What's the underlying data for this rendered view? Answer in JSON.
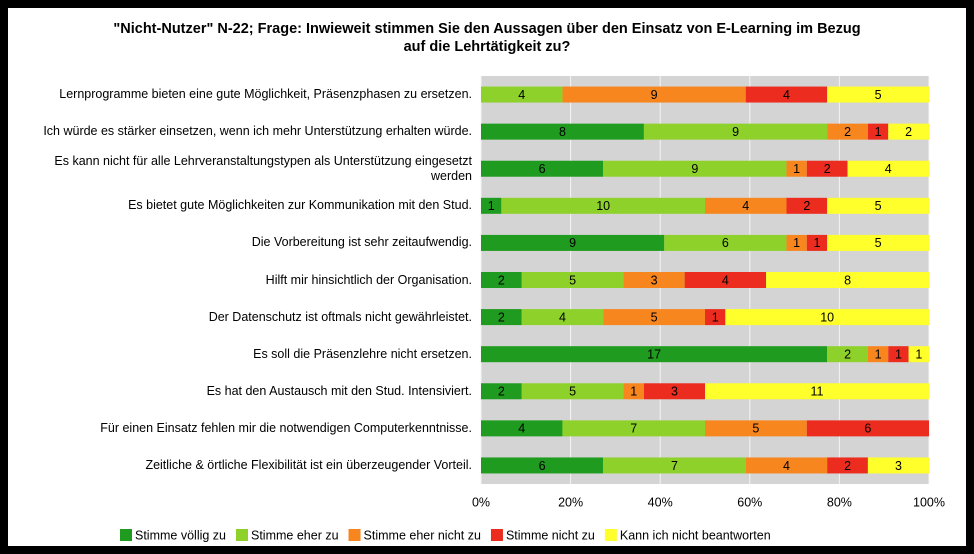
{
  "chart_data": {
    "type": "bar",
    "orientation": "horizontal",
    "stacking": "percent",
    "title": "\"Nicht-Nutzer\" N-22; Frage: Inwieweit stimmen Sie den Aussagen über den Einsatz von E-Learning im Bezug auf die Lehrtätigkeit zu?",
    "categories": [
      "Lernprogramme bieten eine gute Möglichkeit, Präsenzphasen zu ersetzen.",
      "Ich würde es stärker einsetzen, wenn ich mehr Unterstützung erhalten würde.",
      "Es kann nicht für alle Lehrveranstaltungstypen als Unterstützung eingesetzt werden",
      "Es bietet gute Möglichkeiten zur Kommunikation mit den Stud.",
      "Die Vorbereitung ist sehr zeitaufwendig.",
      "Hilft mir hinsichtlich der Organisation.",
      "Der Datenschutz ist oftmals nicht gewährleistet.",
      "Es soll die Präsenzlehre nicht ersetzen.",
      "Es hat den Austausch mit den Stud. Intensiviert.",
      "Für einen Einsatz fehlen mir die notwendigen Computerkenntnisse.",
      "Zeitliche & örtliche Flexibilität ist ein überzeugender Vorteil."
    ],
    "series": [
      {
        "name": "Stimme völlig zu",
        "color": "#1f9b1f",
        "values": [
          null,
          8,
          6,
          1,
          9,
          2,
          2,
          17,
          2,
          4,
          6
        ]
      },
      {
        "name": "Stimme eher zu",
        "color": "#8ed12b",
        "values": [
          4,
          9,
          9,
          10,
          6,
          5,
          4,
          2,
          5,
          7,
          7
        ]
      },
      {
        "name": "Stimme eher nicht zu",
        "color": "#f7861f",
        "values": [
          9,
          2,
          1,
          4,
          1,
          3,
          5,
          1,
          1,
          5,
          4
        ]
      },
      {
        "name": "Stimme nicht zu",
        "color": "#ec2c1f",
        "values": [
          4,
          1,
          2,
          2,
          1,
          4,
          1,
          1,
          3,
          6,
          2
        ]
      },
      {
        "name": "Kann ich nicht beantworten",
        "color": "#ffff2b",
        "values": [
          5,
          2,
          4,
          5,
          5,
          8,
          10,
          1,
          11,
          null,
          3
        ]
      }
    ],
    "xlim": [
      0,
      100
    ],
    "xticks": [
      {
        "value": 0,
        "label": "0%"
      },
      {
        "value": 20,
        "label": "20%"
      },
      {
        "value": 40,
        "label": "40%"
      },
      {
        "value": 60,
        "label": "60%"
      },
      {
        "value": 80,
        "label": "80%"
      },
      {
        "value": 100,
        "label": "100%"
      }
    ],
    "grid": true,
    "legend": "bottom"
  }
}
